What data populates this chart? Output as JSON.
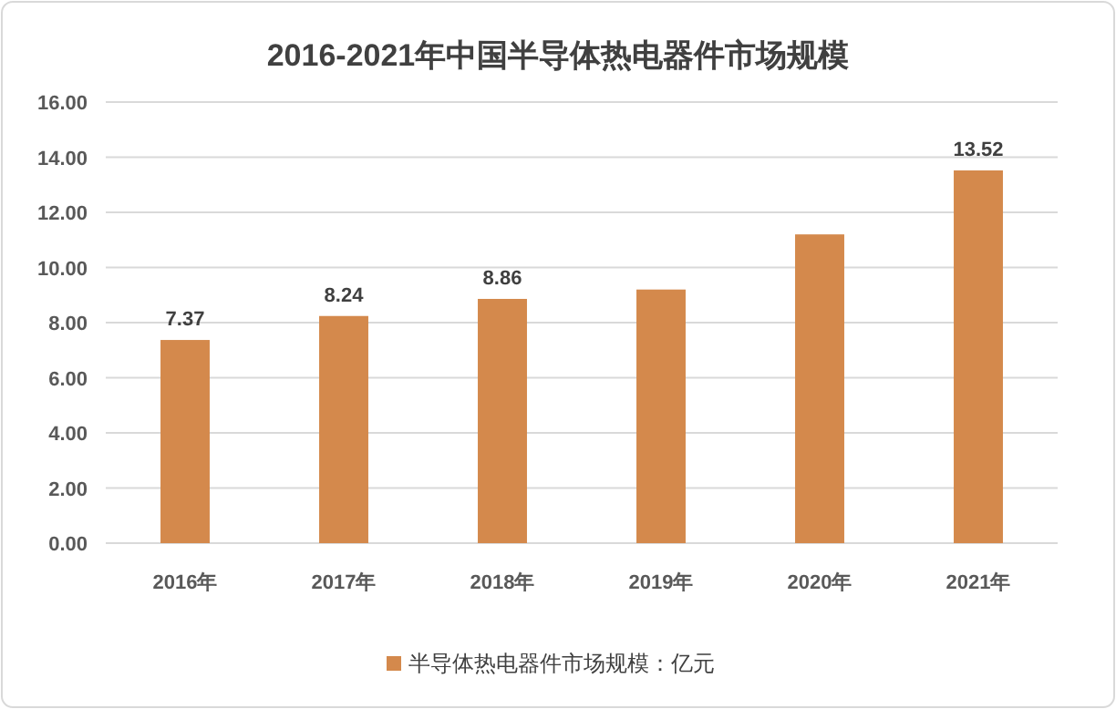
{
  "chart_data": {
    "type": "bar",
    "title": "2016-2021年中国半导体热电器件市场规模",
    "categories": [
      "2016年",
      "2017年",
      "2018年",
      "2019年",
      "2020年",
      "2021年"
    ],
    "series": [
      {
        "name": "半导体热电器件市场规模：亿元",
        "color": "#d4894c",
        "values": [
          7.37,
          8.24,
          8.86,
          9.2,
          11.2,
          13.52
        ],
        "value_labels": [
          "7.37",
          "8.24",
          "8.86",
          null,
          null,
          "13.52"
        ]
      }
    ],
    "ylim": [
      0,
      16
    ],
    "yticks": [
      {
        "value": 0,
        "label": "0.00"
      },
      {
        "value": 2,
        "label": "2.00"
      },
      {
        "value": 4,
        "label": "4.00"
      },
      {
        "value": 6,
        "label": "6.00"
      },
      {
        "value": 8,
        "label": "8.00"
      },
      {
        "value": 10,
        "label": "10.00"
      },
      {
        "value": 12,
        "label": "12.00"
      },
      {
        "value": 14,
        "label": "14.00"
      },
      {
        "value": 16,
        "label": "16.00"
      }
    ],
    "grid": "y",
    "legend": "bottom"
  }
}
